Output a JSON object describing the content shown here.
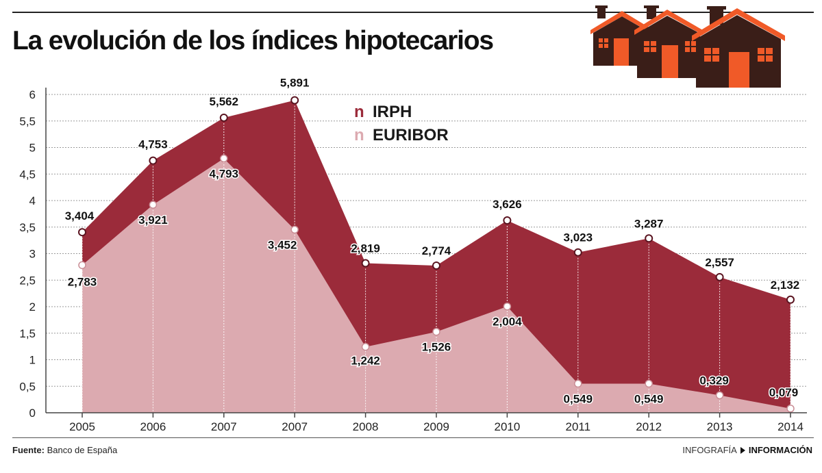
{
  "title": "La evolución de los índices hipotecarios",
  "footer": {
    "source_label": "Fuente:",
    "source_value": "Banco de España",
    "credit_left": "INFOGRAFÍA",
    "credit_right": "INFORMACIÓN"
  },
  "colors": {
    "irph": "#9b2b3a",
    "euribor": "#dcaab0",
    "grid": "#9a9a9a",
    "house_body": "#3a1e18",
    "house_accent": "#f05a28"
  },
  "chart_data": {
    "type": "area",
    "categories": [
      "2005",
      "2006",
      "2007",
      "2007",
      "2008",
      "2009",
      "2010",
      "2011",
      "2012",
      "2013",
      "2014"
    ],
    "series": [
      {
        "name": "IRPH",
        "values": [
          3.404,
          4.753,
          5.562,
          5.891,
          2.819,
          2.774,
          3.626,
          3.023,
          3.287,
          2.557,
          2.132
        ],
        "labels": [
          "3,404",
          "4,753",
          "5,562",
          "5,891",
          "2,819",
          "2,774",
          "3,626",
          "3,023",
          "3,287",
          "2,557",
          "2,132"
        ]
      },
      {
        "name": "EURIBOR",
        "values": [
          2.783,
          3.921,
          4.793,
          3.452,
          1.242,
          1.526,
          2.004,
          0.549,
          0.549,
          0.329,
          0.079
        ],
        "labels": [
          "2,783",
          "3,921",
          "4,793",
          "3,452",
          "1,242",
          "1,526",
          "2,004",
          "0,549",
          "0,549",
          "0,329",
          "0,079"
        ]
      }
    ],
    "ylim": [
      0,
      6
    ],
    "yticks": [
      "0",
      "0,5",
      "1",
      "1,5",
      "2",
      "2,5",
      "3",
      "3,5",
      "4",
      "4,5",
      "5",
      "5,5",
      "6"
    ],
    "grid": true,
    "legend_position": "top-center",
    "legend_marker": "n"
  }
}
